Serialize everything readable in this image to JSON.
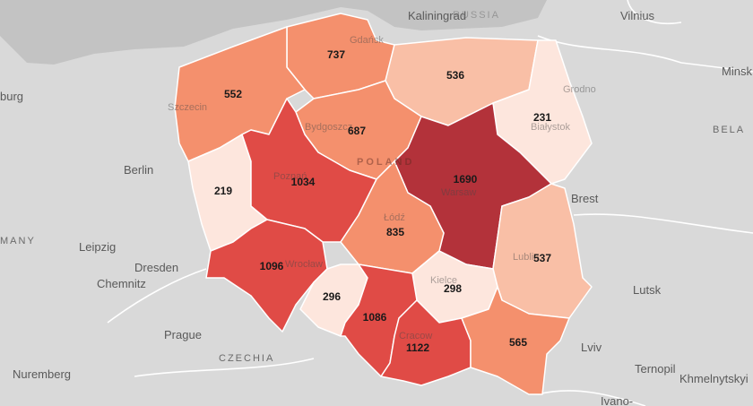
{
  "colors": {
    "background": "#d9d9d9",
    "sea": "#c2c2c2",
    "scale": [
      "#fde6dd",
      "#f9bfa6",
      "#f4906d",
      "#e04b46",
      "#b3323a"
    ]
  },
  "places": {
    "kaliningrad": "Kaliningrad",
    "russia_fragment": "RUSSIA",
    "vilnius": "Vilnius",
    "minsk_fragment": "Minsk",
    "belarus_fragment": "BELA",
    "hamburg_fragment": "burg",
    "berlin": "Berlin",
    "germany_fragment": "MANY",
    "leipzig": "Leipzig",
    "dresden": "Dresden",
    "chemnitz": "Chemnitz",
    "prague": "Prague",
    "czechia": "CZECHIA",
    "nuremberg": "Nuremberg",
    "brest": "Brest",
    "grodno": "Grodno",
    "lutsk": "Lutsk",
    "lviv": "Lviv",
    "ternopil": "Ternopil",
    "khmelnytskyi": "Khmelnytskyi",
    "ivano_fragment": "Ivano-",
    "poland": "POLAND",
    "gdansk": "Gdańsk",
    "szczecin": "Szczecin",
    "bydgoszcz": "Bydgoszcz",
    "poznan": "Poznań",
    "warsaw": "Warsaw",
    "lodz": "Łódź",
    "bialystok": "Białystok",
    "lublin": "Lublin",
    "wroclaw": "Wrocław",
    "kielce": "Kielce",
    "krakow": "Cracow"
  },
  "regions": [
    {
      "id": "pomorskie",
      "value": "737",
      "level": 2
    },
    {
      "id": "zachodniopomorskie",
      "value": "552",
      "level": 2
    },
    {
      "id": "warminsko-mazurskie",
      "value": "536",
      "level": 1
    },
    {
      "id": "podlaskie",
      "value": "231",
      "level": 0
    },
    {
      "id": "kujawsko-pomorskie",
      "value": "687",
      "level": 2
    },
    {
      "id": "lubuskie",
      "value": "219",
      "level": 0
    },
    {
      "id": "wielkopolskie",
      "value": "1034",
      "level": 3
    },
    {
      "id": "mazowieckie",
      "value": "1690",
      "level": 4
    },
    {
      "id": "lodzkie",
      "value": "835",
      "level": 2
    },
    {
      "id": "lubelskie",
      "value": "537",
      "level": 1
    },
    {
      "id": "dolnoslaskie",
      "value": "1096",
      "level": 3
    },
    {
      "id": "opolskie",
      "value": "296",
      "level": 0
    },
    {
      "id": "swietokrzyskie",
      "value": "298",
      "level": 0
    },
    {
      "id": "slaskie",
      "value": "1086",
      "level": 3
    },
    {
      "id": "malopolskie",
      "value": "1122",
      "level": 3
    },
    {
      "id": "podkarpackie",
      "value": "565",
      "level": 2
    }
  ]
}
